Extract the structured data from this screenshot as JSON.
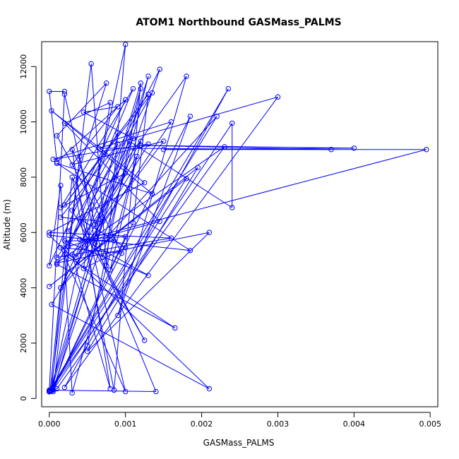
{
  "chart_data": {
    "type": "scatter",
    "title": "ATOM1 Northbound GASMass_PALMS",
    "xlabel": "GASMass_PALMS",
    "ylabel": "Altitude (m)",
    "xlim": [
      -0.0001,
      0.0051
    ],
    "ylim": [
      -300,
      12900
    ],
    "xticks": [
      0.0,
      0.001,
      0.002,
      0.003,
      0.004,
      0.005
    ],
    "xtick_labels": [
      "0.000",
      "0.001",
      "0.002",
      "0.003",
      "0.004",
      "0.005"
    ],
    "yticks": [
      0,
      2000,
      4000,
      6000,
      8000,
      10000,
      12000
    ],
    "ytick_labels": [
      "0",
      "2000",
      "4000",
      "6000",
      "8000",
      "10000",
      "12000"
    ],
    "grid": false,
    "marker": "open-circle",
    "connected": true,
    "color": "#0000ff",
    "series": [
      {
        "points": [
          [
            0.0,
            280
          ],
          [
            0.0001,
            350
          ],
          [
            0.0005,
            1900
          ],
          [
            0.0012,
            11200
          ],
          [
            5e-05,
            250
          ],
          [
            0.0004,
            8750
          ],
          [
            0.0006,
            5600
          ],
          [
            0.0014,
            250
          ],
          [
            0.0,
            300
          ],
          [
            0.0002,
            11000
          ],
          [
            0.0007,
            5100
          ],
          [
            0.0013,
            11650
          ],
          [
            2e-05,
            260
          ],
          [
            0.00055,
            12100
          ],
          [
            0.00075,
            4800
          ],
          [
            0.001,
            12800
          ],
          [
            3e-05,
            290
          ],
          [
            0.0003,
            8000
          ],
          [
            0.00085,
            300
          ],
          [
            0.0012,
            11400
          ],
          [
            1e-05,
            270
          ],
          [
            0.00015,
            4000
          ],
          [
            0.00105,
            9300
          ],
          [
            0.0024,
            6900
          ],
          [
            0.0024,
            9950
          ],
          [
            5e-05,
            300
          ],
          [
            0.0011,
            6350
          ],
          [
            0.0013,
            11000
          ],
          [
            0.0002,
            7000
          ],
          [
            0.00135,
            11050
          ],
          [
            0.0001,
            4850
          ],
          [
            0.00165,
            2550
          ],
          [
            0.0002,
            5200
          ],
          [
            0.00145,
            11900
          ],
          [
            5e-05,
            330
          ],
          [
            0.00185,
            10200
          ],
          [
            0.0009,
            3000
          ],
          [
            0.0018,
            11650
          ],
          [
            0.0001,
            5100
          ],
          [
            0.0016,
            5800
          ],
          [
            0.0,
            6000
          ],
          [
            0.00125,
            7800
          ],
          [
            3e-05,
            10400
          ],
          [
            0.00135,
            7400
          ],
          [
            0.0001,
            8500
          ],
          [
            0.00185,
            5350
          ],
          [
            0.0,
            5900
          ],
          [
            0.0021,
            350
          ],
          [
            3e-05,
            3400
          ],
          [
            0.0013,
            9200
          ],
          [
            5e-05,
            8650
          ],
          [
            0.0016,
            10000
          ],
          [
            0.00015,
            4000
          ],
          [
            0.0022,
            10200
          ],
          [
            0.0,
            240
          ],
          [
            0.0018,
            7950
          ],
          [
            0.0,
            4050
          ],
          [
            0.00195,
            8350
          ],
          [
            0.0005,
            1700
          ],
          [
            0.0021,
            6000
          ],
          [
            0.0001,
            4900
          ],
          [
            0.0023,
            9100
          ],
          [
            0.0,
            250
          ],
          [
            0.00235,
            11200
          ],
          [
            0.0002,
            400
          ],
          [
            0.003,
            10900
          ],
          [
            0.00065,
            9050
          ],
          [
            0.0037,
            9000
          ],
          [
            0.0012,
            9150
          ],
          [
            0.004,
            9050
          ],
          [
            0.0015,
            9000
          ],
          [
            0.00495,
            9000
          ],
          [
            0.0006,
            5850
          ],
          [
            0.0009,
            9600
          ],
          [
            0.0003,
            6800
          ],
          [
            0.00125,
            2100
          ],
          [
            0.0004,
            6500
          ],
          [
            0.001,
            5450
          ],
          [
            0.00045,
            4700
          ],
          [
            0.0008,
            10700
          ],
          [
            0.0002,
            9950
          ],
          [
            0.00145,
            6400
          ],
          [
            0.00025,
            5500
          ],
          [
            0.0011,
            11200
          ],
          [
            0.00015,
            6900
          ],
          [
            0.001,
            8150
          ],
          [
            0.0003,
            5200
          ],
          [
            0.0008,
            350
          ],
          [
            0.0003,
            9000
          ],
          [
            0.00095,
            5250
          ],
          [
            0.00015,
            5450
          ],
          [
            0.001,
            250
          ],
          [
            0.00035,
            7900
          ],
          [
            0.00075,
            11400
          ],
          [
            0.0001,
            9500
          ],
          [
            0.0007,
            6400
          ],
          [
            0.00015,
            6550
          ],
          [
            0.0009,
            9200
          ],
          [
            0.00025,
            6050
          ],
          [
            0.0013,
            4450
          ],
          [
            0.0002,
            5700
          ],
          [
            0.00085,
            5700
          ],
          [
            0.0004,
            5750
          ],
          [
            0.001,
            5850
          ],
          [
            0.0008,
            4650
          ],
          [
            0.0012,
            9300
          ],
          [
            0.0006,
            6300
          ],
          [
            0.0011,
            9400
          ],
          [
            0.00045,
            10350
          ],
          [
            0.0009,
            10550
          ],
          [
            0.0003,
            8450
          ],
          [
            0.0015,
            9300
          ],
          [
            0.00035,
            5100
          ],
          [
            0.00115,
            8750
          ],
          [
            0.0003,
            200
          ],
          [
            0.00015,
            7700
          ],
          [
            0.0,
            4800
          ],
          [
            0.001,
            10800
          ],
          [
            0.0001,
            8550
          ],
          [
            0.0,
            11100
          ],
          [
            0.0002,
            11100
          ]
        ]
      }
    ]
  }
}
